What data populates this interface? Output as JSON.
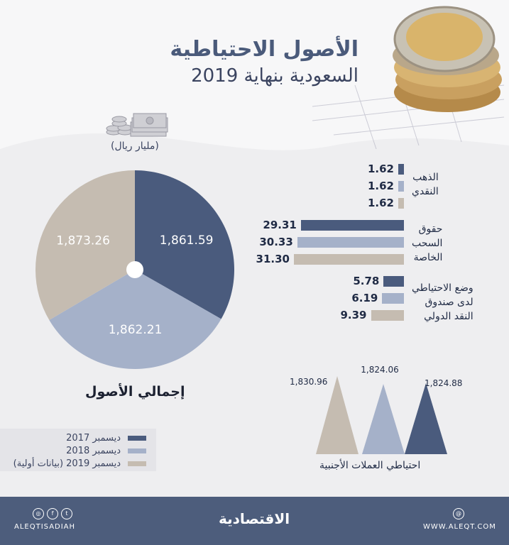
{
  "header": {
    "title": "الأصول الاحتياطية",
    "subtitle": "السعودية بنهاية 2019"
  },
  "unit_label": "(مليار ريال)",
  "pie_total_label": "إجمالي الأصول",
  "legend": [
    {
      "label": "ديسمبر 2017",
      "color": "#4a5b7d"
    },
    {
      "label": "ديسمبر 2018",
      "color": "#a5b1c9"
    },
    {
      "label": "ديسمبر 2019 (بيانات أولية)",
      "color": "#c5bcb1"
    }
  ],
  "groups": {
    "gold": [
      "الذهب",
      "النقدي"
    ],
    "sdr": [
      "حقوق",
      "السحب",
      "الخاصة"
    ],
    "imf": [
      "وضع الاحتياطي",
      "لدى صندوق",
      "النقد الدولي"
    ]
  },
  "fx_title": "احتياطي العملات الأجنبية",
  "footer": {
    "brand": "الاقتصادية",
    "handle": "ALEQTISADIAH",
    "site": "WWW.ALEQT.COM"
  },
  "chart_data": [
    {
      "type": "pie",
      "title": "إجمالي الأصول",
      "labels": [
        "ديسمبر 2017",
        "ديسمبر 2018",
        "ديسمبر 2019 (بيانات أولية)"
      ],
      "values": [
        1861.59,
        1862.21,
        1873.26
      ],
      "value_labels": [
        "1,861.59",
        "1,862.21",
        "1,873.26"
      ],
      "colors": [
        "#4a5b7d",
        "#a5b1c9",
        "#c5bcb1"
      ]
    },
    {
      "type": "bar",
      "category": "الذهب النقدي",
      "series": [
        {
          "name": "ديسمبر 2017",
          "value": 1.62,
          "label": "1.62"
        },
        {
          "name": "ديسمبر 2018",
          "value": 1.62,
          "label": "1.62"
        },
        {
          "name": "ديسمبر 2019 (بيانات أولية)",
          "value": 1.62,
          "label": "1.62"
        }
      ]
    },
    {
      "type": "bar",
      "category": "حقوق السحب الخاصة",
      "series": [
        {
          "name": "ديسمبر 2017",
          "value": 29.31,
          "label": "29.31"
        },
        {
          "name": "ديسمبر 2018",
          "value": 30.33,
          "label": "30.33"
        },
        {
          "name": "ديسمبر 2019 (بيانات أولية)",
          "value": 31.3,
          "label": "31.30"
        }
      ]
    },
    {
      "type": "bar",
      "category": "وضع الاحتياطي لدى صندوق النقد الدولي",
      "series": [
        {
          "name": "ديسمبر 2017",
          "value": 5.78,
          "label": "5.78"
        },
        {
          "name": "ديسمبر 2018",
          "value": 6.19,
          "label": "6.19"
        },
        {
          "name": "ديسمبر 2019 (بيانات أولية)",
          "value": 9.39,
          "label": "9.39"
        }
      ]
    },
    {
      "type": "bar",
      "title": "احتياطي العملات الأجنبية",
      "series": [
        {
          "name": "ديسمبر 2017",
          "value": 1824.88,
          "label": "1,824.88"
        },
        {
          "name": "ديسمبر 2018",
          "value": 1824.06,
          "label": "1,824.06"
        },
        {
          "name": "ديسمبر 2019 (بيانات أولية)",
          "value": 1830.96,
          "label": "1,830.96"
        }
      ]
    }
  ]
}
